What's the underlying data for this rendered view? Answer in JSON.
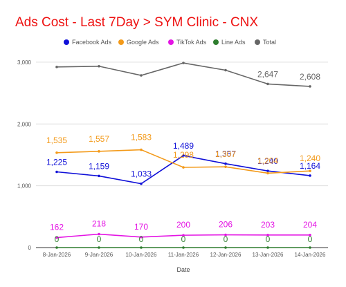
{
  "chart_data": {
    "type": "line",
    "title": "Ads Cost - Last 7Day > SYM Clinic - CNX",
    "title_color": "#ee1111",
    "xlabel": "Date",
    "ylabel": "",
    "categories": [
      "8-Jan-2026",
      "9-Jan-2026",
      "10-Jan-2026",
      "11-Jan-2026",
      "12-Jan-2026",
      "13-Jan-2026",
      "14-Jan-2026"
    ],
    "ylim": [
      0,
      3200
    ],
    "yticks": [
      0,
      1000,
      2000,
      3000
    ],
    "ytick_labels": [
      "0",
      "1,000",
      "2,000",
      "3,000"
    ],
    "grid": true,
    "legend_position": "top",
    "series": [
      {
        "name": "Facebook Ads",
        "color": "#1010d8",
        "values": [
          1225,
          1159,
          1033,
          1489,
          1357,
          1240,
          1164
        ],
        "labels": [
          "1,225",
          "1,159",
          "1,033",
          "1,489",
          "1,357",
          "1,240",
          "1,164"
        ]
      },
      {
        "name": "Google Ads",
        "color": "#f39a1a",
        "values": [
          1535,
          1557,
          1583,
          1298,
          1307,
          1204,
          1240
        ],
        "labels": [
          "1,535",
          "1,557",
          "1,583",
          "1,298",
          "1,307",
          "1,204",
          "1,240"
        ]
      },
      {
        "name": "TikTok Ads",
        "color": "#e414e4",
        "values": [
          162,
          218,
          170,
          200,
          206,
          203,
          204
        ],
        "labels": [
          "162",
          "218",
          "170",
          "200",
          "206",
          "203",
          "204"
        ]
      },
      {
        "name": "Line Ads",
        "color": "#2e7d2e",
        "values": [
          0,
          0,
          0,
          0,
          0,
          0,
          0
        ],
        "labels": [
          "0",
          "0",
          "0",
          "0",
          "0",
          "0",
          "0"
        ]
      },
      {
        "name": "Total",
        "color": "#666666",
        "values": [
          2922,
          2934,
          2786,
          2987,
          2870,
          2647,
          2608
        ],
        "labels": [
          "",
          "",
          "",
          "",
          "",
          "2,647",
          "2,608"
        ]
      }
    ]
  }
}
